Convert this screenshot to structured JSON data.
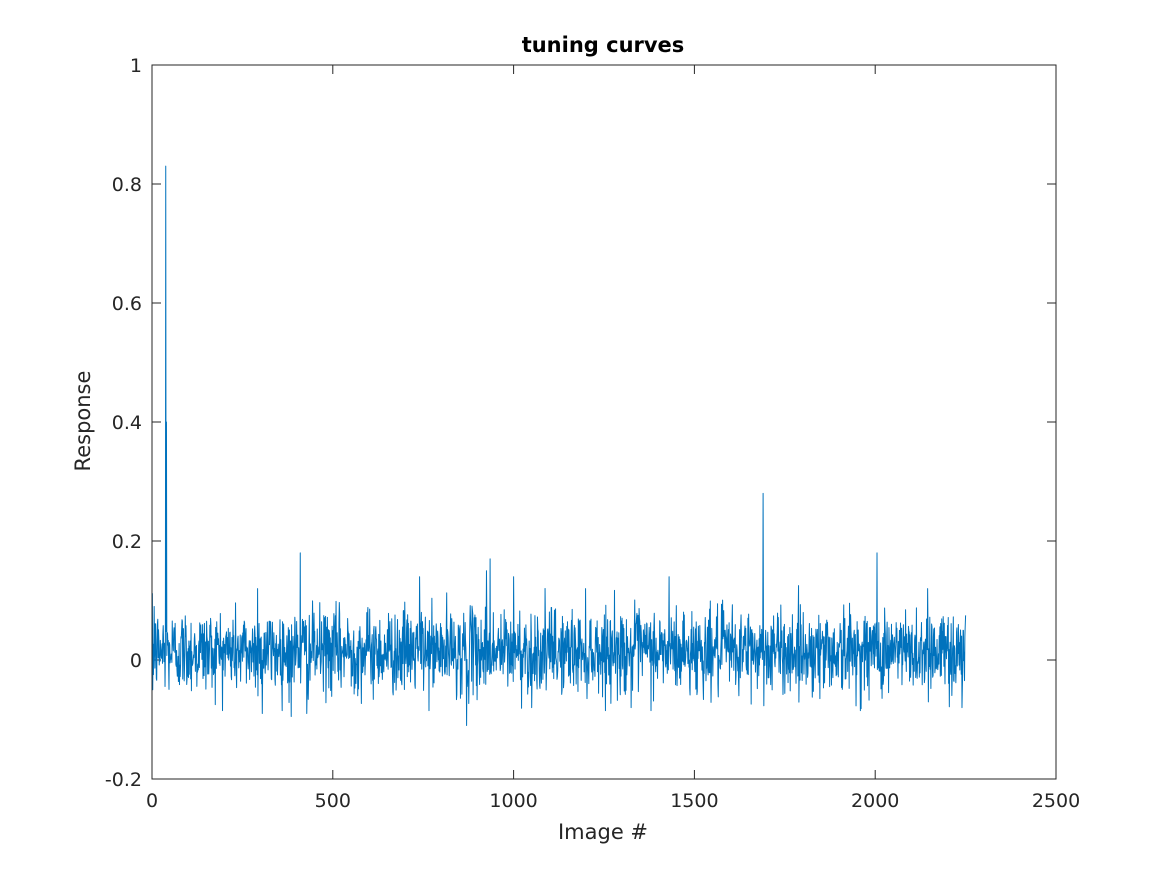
{
  "chart_data": {
    "type": "line",
    "title": "tuning curves",
    "xlabel": "Image #",
    "ylabel": "Response",
    "xlim": [
      0,
      2500
    ],
    "ylim": [
      -0.2,
      1
    ],
    "xticks": [
      0,
      500,
      1000,
      1500,
      2000,
      2500
    ],
    "yticks": [
      -0.2,
      0,
      0.2,
      0.4,
      0.6,
      0.8,
      1
    ],
    "xtick_labels": [
      "0",
      "500",
      "1000",
      "1500",
      "2000",
      "2500"
    ],
    "ytick_labels": [
      "-0.2",
      "0",
      "0.2",
      "0.4",
      "0.6",
      "0.8",
      "1"
    ],
    "grid": false,
    "box": true,
    "line_color": "#0072bd",
    "n_points": 2250,
    "baseline_mean": 0.015,
    "noise_sd": 0.035,
    "peaks": [
      {
        "x": 6,
        "y": 0.09
      },
      {
        "x": 38,
        "y": 0.83
      },
      {
        "x": 40,
        "y": 0.4
      },
      {
        "x": 292,
        "y": 0.12
      },
      {
        "x": 410,
        "y": 0.18
      },
      {
        "x": 740,
        "y": 0.14
      },
      {
        "x": 925,
        "y": 0.15
      },
      {
        "x": 935,
        "y": 0.17
      },
      {
        "x": 1000,
        "y": 0.14
      },
      {
        "x": 1430,
        "y": 0.14
      },
      {
        "x": 1690,
        "y": 0.28
      },
      {
        "x": 2005,
        "y": 0.18
      },
      {
        "x": 2145,
        "y": 0.12
      }
    ],
    "troughs": [
      {
        "x": 2,
        "y": -0.05
      },
      {
        "x": 305,
        "y": -0.09
      },
      {
        "x": 385,
        "y": -0.095
      },
      {
        "x": 428,
        "y": -0.09
      },
      {
        "x": 870,
        "y": -0.11
      },
      {
        "x": 1050,
        "y": -0.08
      },
      {
        "x": 1325,
        "y": -0.08
      },
      {
        "x": 2240,
        "y": -0.08
      }
    ],
    "last_value": 0.075
  }
}
